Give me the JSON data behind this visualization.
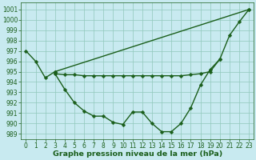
{
  "title": "Graphe pression niveau de la mer (hPa)",
  "bg_color": "#c8eaf0",
  "grid_color": "#90c8bc",
  "line_color": "#1a5e1a",
  "ylim": [
    988.5,
    1001.7
  ],
  "xlim": [
    -0.5,
    23.5
  ],
  "yticks": [
    989,
    990,
    991,
    992,
    993,
    994,
    995,
    996,
    997,
    998,
    999,
    1000,
    1001
  ],
  "xticks": [
    0,
    1,
    2,
    3,
    4,
    5,
    6,
    7,
    8,
    9,
    10,
    11,
    12,
    13,
    14,
    15,
    16,
    17,
    18,
    19,
    20,
    21,
    22,
    23
  ],
  "curve1_x": [
    0,
    1,
    2,
    3
  ],
  "curve1_y": [
    997.0,
    996.0,
    994.4,
    995.0
  ],
  "curve2_x": [
    3,
    4,
    5,
    6,
    7,
    8,
    9,
    10,
    11,
    12,
    13,
    14,
    15,
    16,
    17,
    18,
    19,
    20,
    21,
    22,
    23
  ],
  "curve2_y": [
    994.8,
    993.3,
    992.0,
    991.2,
    990.7,
    990.7,
    990.1,
    989.9,
    991.1,
    991.1,
    990.0,
    989.2,
    989.2,
    990.0,
    991.5,
    993.7,
    995.2,
    996.2,
    998.5,
    999.8,
    1001.0
  ],
  "curve3_x": [
    3,
    23
  ],
  "curve3_y": [
    995.0,
    1001.0
  ],
  "curve4_x": [
    3,
    4,
    5,
    6,
    7,
    8,
    9,
    10,
    11,
    12,
    13,
    14,
    15,
    16,
    17,
    18,
    19,
    20
  ],
  "curve4_y": [
    994.8,
    994.7,
    994.7,
    994.6,
    994.6,
    994.6,
    994.6,
    994.6,
    994.6,
    994.6,
    994.6,
    994.6,
    994.6,
    994.6,
    994.7,
    994.8,
    995.0,
    996.2
  ],
  "linewidth": 1.0,
  "marker_size": 2.5,
  "font_size_tick": 5.5,
  "font_size_title": 6.8,
  "font_color": "#1a5e1a"
}
